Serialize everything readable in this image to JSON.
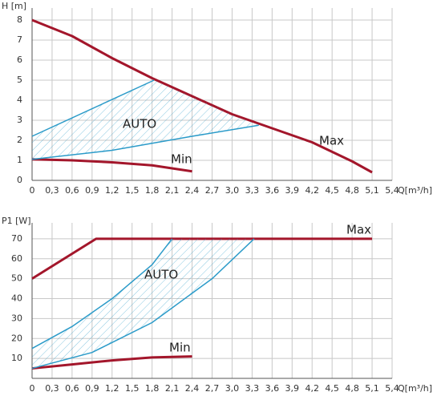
{
  "chart_data": [
    {
      "type": "line",
      "ylabel": "H [m]",
      "xlabel": "Q[m³/h]",
      "xlim": [
        0,
        5.4
      ],
      "ylim": [
        0,
        8.6
      ],
      "grid": true,
      "xticks": [
        0,
        {
          "value": 0.3,
          "label": "0,3"
        },
        {
          "value": 0.6,
          "label": "0,6"
        },
        {
          "value": 0.9,
          "label": "0,9"
        },
        {
          "value": 1.2,
          "label": "1,2"
        },
        {
          "value": 1.5,
          "label": "1,5"
        },
        {
          "value": 1.8,
          "label": "1,8"
        },
        {
          "value": 2.1,
          "label": "2,1"
        },
        {
          "value": 2.4,
          "label": "2,4"
        },
        {
          "value": 2.7,
          "label": "2,7"
        },
        {
          "value": 3.0,
          "label": "3,0"
        },
        {
          "value": 3.3,
          "label": "3,3"
        },
        {
          "value": 3.6,
          "label": "3,6"
        },
        {
          "value": 3.9,
          "label": "3,9"
        },
        {
          "value": 4.2,
          "label": "4,2"
        },
        {
          "value": 4.5,
          "label": "4,5"
        },
        {
          "value": 4.8,
          "label": "4,8"
        },
        {
          "value": 5.1,
          "label": "5,1"
        },
        {
          "value": 5.4,
          "label": "5,4"
        }
      ],
      "yticks": [
        0,
        1,
        2,
        3,
        4,
        5,
        6,
        7,
        8
      ],
      "series": [
        {
          "name": "Max",
          "color": "#a3162b",
          "x": [
            0,
            0.6,
            1.2,
            1.8,
            2.4,
            3.0,
            3.6,
            4.2,
            4.8,
            5.1
          ],
          "values": [
            8,
            7.2,
            6.1,
            5.1,
            4.2,
            3.3,
            2.6,
            1.9,
            0.95,
            0.4
          ]
        },
        {
          "name": "Min",
          "color": "#a3162b",
          "x": [
            0,
            0.6,
            1.2,
            1.8,
            2.4
          ],
          "values": [
            1.05,
            1.0,
            0.9,
            0.75,
            0.45
          ]
        },
        {
          "name": "AUTO",
          "color": "#2b9bc9",
          "bounds": [
            {
              "x": [
                0,
                1.83
              ],
              "values": [
                2.2,
                5.0
              ]
            },
            {
              "x": [
                0,
                1.2,
                2.4,
                3.4
              ],
              "values": [
                1.05,
                1.5,
                2.2,
                2.75
              ]
            }
          ]
        }
      ]
    },
    {
      "type": "line",
      "ylabel": "P1 [W]",
      "xlabel": "Q[m³/h]",
      "xlim": [
        0,
        5.4
      ],
      "ylim": [
        0,
        78
      ],
      "grid": true,
      "xticks": [
        0,
        {
          "value": 0.3,
          "label": "0,3"
        },
        {
          "value": 0.6,
          "label": "0,6"
        },
        {
          "value": 0.9,
          "label": "0,9"
        },
        {
          "value": 1.2,
          "label": "1,2"
        },
        {
          "value": 1.5,
          "label": "1,5"
        },
        {
          "value": 1.8,
          "label": "1,8"
        },
        {
          "value": 2.1,
          "label": "2,1"
        },
        {
          "value": 2.4,
          "label": "2,4"
        },
        {
          "value": 2.7,
          "label": "2,7"
        },
        {
          "value": 3.0,
          "label": "3,0"
        },
        {
          "value": 3.3,
          "label": "3,3"
        },
        {
          "value": 3.6,
          "label": "3,6"
        },
        {
          "value": 3.9,
          "label": "3,9"
        },
        {
          "value": 4.2,
          "label": "4,2"
        },
        {
          "value": 4.5,
          "label": "4,5"
        },
        {
          "value": 4.8,
          "label": "4,8"
        },
        {
          "value": 5.1,
          "label": "5,1"
        },
        {
          "value": 5.4,
          "label": "5,4"
        }
      ],
      "yticks": [
        10,
        20,
        30,
        40,
        50,
        60,
        70
      ],
      "series": [
        {
          "name": "Max",
          "color": "#a3162b",
          "x": [
            0,
            0.96,
            5.1
          ],
          "values": [
            50,
            70,
            70
          ]
        },
        {
          "name": "Min",
          "color": "#a3162b",
          "x": [
            0,
            0.6,
            1.2,
            1.8,
            2.4
          ],
          "values": [
            5,
            7,
            9,
            10.5,
            11
          ]
        },
        {
          "name": "AUTO",
          "color": "#2b9bc9",
          "bounds": [
            {
              "x": [
                0,
                0.6,
                1.2,
                1.8,
                2.1
              ],
              "values": [
                15,
                26,
                40,
                57,
                70
              ]
            },
            {
              "x": [
                0,
                0.9,
                1.8,
                2.7,
                3.33
              ],
              "values": [
                5,
                13,
                28,
                50,
                70
              ]
            }
          ]
        }
      ]
    }
  ]
}
